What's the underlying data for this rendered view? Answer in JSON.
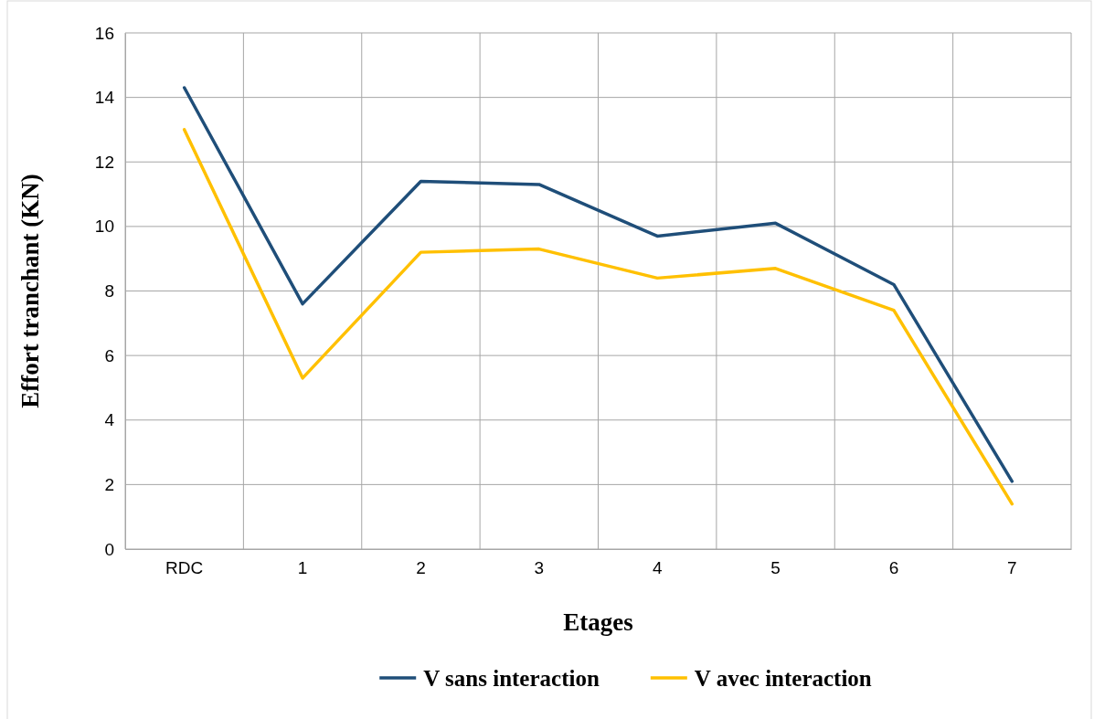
{
  "chart_data": {
    "type": "line",
    "xlabel": "Etages",
    "ylabel": "Effort tranchant (KN)",
    "categories": [
      "RDC",
      "1",
      "2",
      "3",
      "4",
      "5",
      "6",
      "7"
    ],
    "series": [
      {
        "name": "V sans interaction",
        "color": "#1f4e79",
        "values": [
          14.3,
          7.6,
          11.4,
          11.3,
          9.7,
          10.1,
          8.2,
          2.1
        ]
      },
      {
        "name": "V avec interaction",
        "color": "#ffc000",
        "values": [
          13.0,
          5.3,
          9.2,
          9.3,
          8.4,
          8.7,
          7.4,
          1.4
        ]
      }
    ],
    "ylim": [
      0,
      16
    ],
    "yticks": [
      0,
      2,
      4,
      6,
      8,
      10,
      12,
      14,
      16
    ],
    "grid": true,
    "legend": "bottom",
    "marker": "none",
    "line_style": "solid"
  }
}
